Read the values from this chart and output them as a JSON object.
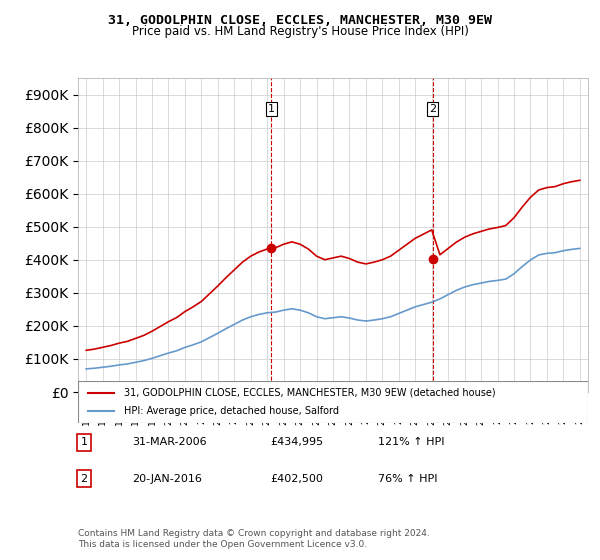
{
  "title": "31, GODOLPHIN CLOSE, ECCLES, MANCHESTER, M30 9EW",
  "subtitle": "Price paid vs. HM Land Registry's House Price Index (HPI)",
  "legend_line1": "31, GODOLPHIN CLOSE, ECCLES, MANCHESTER, M30 9EW (detached house)",
  "legend_line2": "HPI: Average price, detached house, Salford",
  "sale1_label": "1",
  "sale1_date": "31-MAR-2006",
  "sale1_price": "£434,995",
  "sale1_hpi": "121% ↑ HPI",
  "sale2_label": "2",
  "sale2_date": "20-JAN-2016",
  "sale2_price": "£402,500",
  "sale2_hpi": "76% ↑ HPI",
  "footnote": "Contains HM Land Registry data © Crown copyright and database right 2024.\nThis data is licensed under the Open Government Licence v3.0.",
  "line_color_red": "#cc0000",
  "line_color_blue": "#6699cc",
  "vline_color1": "#cc0000",
  "vline_color2": "#cc0000",
  "background_color": "#ffffff",
  "grid_color": "#cccccc",
  "ylim": [
    0,
    950000
  ],
  "yticks": [
    0,
    100000,
    200000,
    300000,
    400000,
    500000,
    600000,
    700000,
    800000,
    900000
  ],
  "xlim_start": 1994.5,
  "xlim_end": 2025.5
}
